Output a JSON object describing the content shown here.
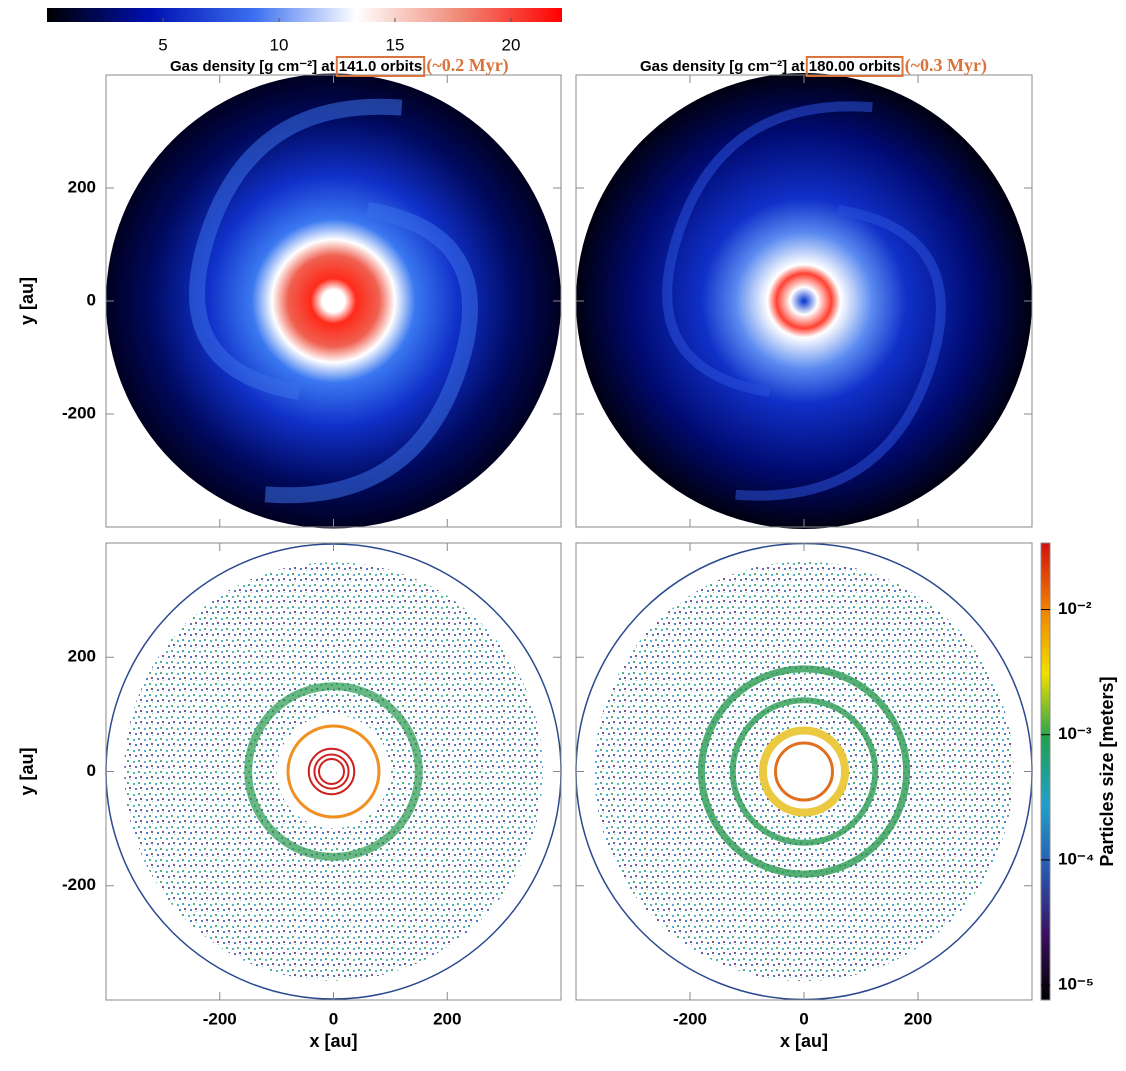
{
  "chart_data": [
    {
      "type": "heatmap",
      "title": "Gas density [g cm⁻²] at",
      "time": "141.0 orbits",
      "annotation": "(~0.2 Myr)",
      "ylabel": "y [au]",
      "xlim": [
        -400,
        400
      ],
      "ylim": [
        -400,
        400
      ],
      "xticks": [
        -200,
        0,
        200
      ],
      "yticks": [
        -200,
        0,
        200
      ],
      "colorbar": {
        "lim": [
          0,
          22.2
        ],
        "ticks": [
          5,
          10,
          15,
          20
        ],
        "colors": [
          "#000000",
          "#0010b0",
          "#3a6ef0",
          "#ffffff",
          "#f08a78",
          "#ff0000"
        ]
      }
    },
    {
      "type": "heatmap",
      "title": "Gas density [g cm⁻²] at",
      "time": "180.00 orbits",
      "annotation": "(~0.3 Myr)",
      "xlim": [
        -400,
        400
      ],
      "ylim": [
        -400,
        400
      ],
      "xticks": [
        -200,
        0,
        200
      ],
      "yticks": [
        -200,
        0,
        200
      ]
    },
    {
      "type": "scatter",
      "xlabel": "x [au]",
      "ylabel": "y [au]",
      "xlim": [
        -400,
        400
      ],
      "ylim": [
        -400,
        400
      ],
      "xticks": [
        -200,
        0,
        200
      ],
      "yticks": [
        -200,
        0,
        200
      ]
    },
    {
      "type": "scatter",
      "xlabel": "x [au]",
      "xlim": [
        -400,
        400
      ],
      "ylim": [
        -400,
        400
      ],
      "xticks": [
        -200,
        0,
        200
      ],
      "yticks": [
        -200,
        0,
        200
      ],
      "colorbar": {
        "label": "Particles size [meters]",
        "log": true,
        "lim": [
          7.6e-06,
          0.034
        ],
        "ticks": [
          {
            "value": 1e-05,
            "label": "10⁻⁵"
          },
          {
            "value": 0.0001,
            "label": "10⁻⁴"
          },
          {
            "value": 0.001,
            "label": "10⁻³"
          },
          {
            "value": 0.01,
            "label": "10⁻²"
          }
        ],
        "colors": [
          "#000000",
          "#3a1060",
          "#2858b0",
          "#20a0c8",
          "#20a050",
          "#f0e000",
          "#f08000",
          "#d01010"
        ]
      }
    }
  ]
}
